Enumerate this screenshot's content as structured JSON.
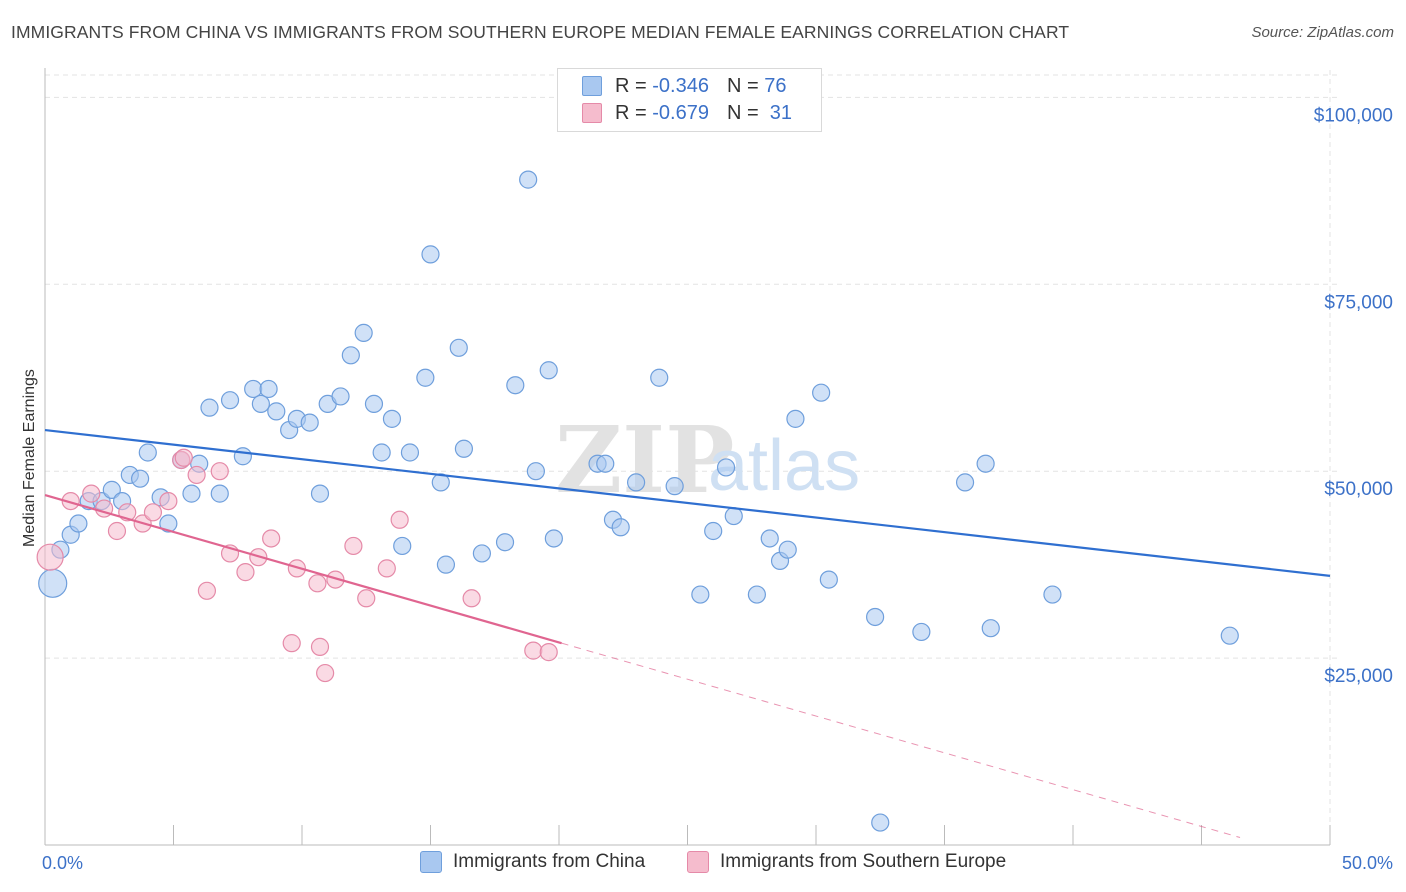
{
  "header": {
    "title": "IMMIGRANTS FROM CHINA VS IMMIGRANTS FROM SOUTHERN EUROPE MEDIAN FEMALE EARNINGS CORRELATION CHART",
    "source": "Source: ZipAtlas.com"
  },
  "watermark": {
    "zip": "ZIP",
    "atlas": "atlas"
  },
  "legend": {
    "rows": [
      {
        "r_label": "R =",
        "r_value": "-0.346",
        "n_label": "N =",
        "n_value": "76"
      },
      {
        "r_label": "R =",
        "r_value": "-0.679",
        "n_label": "N =",
        "n_value": "31"
      }
    ]
  },
  "colors": {
    "china_fill": "#a9c8f0",
    "china_stroke": "#6f9fdc",
    "china_line": "#2f6fd0",
    "se_fill": "#f5bccd",
    "se_stroke": "#e58aa8",
    "se_line": "#e06590",
    "tick_label": "#3c71c8",
    "grid": "#e3e3e3"
  },
  "chart_data": {
    "type": "scatter",
    "title": "IMMIGRANTS FROM CHINA VS IMMIGRANTS FROM SOUTHERN EUROPE MEDIAN FEMALE EARNINGS CORRELATION CHART",
    "xlabel": "",
    "ylabel": "Median Female Earnings",
    "xlim": [
      0,
      50
    ],
    "ylim": [
      0,
      105000
    ],
    "x_tick_labels": [
      "0.0%",
      "50.0%"
    ],
    "y_ticks": [
      25000,
      50000,
      75000,
      100000
    ],
    "y_tick_labels": [
      "$25,000",
      "$50,000",
      "$75,000",
      "$100,000"
    ],
    "grid": true,
    "legend_position": "bottom",
    "series": [
      {
        "name": "Immigrants from China",
        "points": [
          [
            0.3,
            35000
          ],
          [
            0.6,
            39500
          ],
          [
            1.0,
            41500
          ],
          [
            1.3,
            43000
          ],
          [
            1.7,
            46000
          ],
          [
            2.2,
            46000
          ],
          [
            2.6,
            47500
          ],
          [
            3.0,
            46000
          ],
          [
            3.3,
            49500
          ],
          [
            3.7,
            49000
          ],
          [
            4.0,
            52500
          ],
          [
            4.5,
            46500
          ],
          [
            4.8,
            43000
          ],
          [
            5.3,
            51500
          ],
          [
            5.7,
            47000
          ],
          [
            6.0,
            51000
          ],
          [
            6.4,
            58500
          ],
          [
            6.8,
            47000
          ],
          [
            7.2,
            59500
          ],
          [
            7.7,
            52000
          ],
          [
            8.1,
            61000
          ],
          [
            8.4,
            59000
          ],
          [
            8.7,
            61000
          ],
          [
            9.0,
            58000
          ],
          [
            9.5,
            55500
          ],
          [
            9.8,
            57000
          ],
          [
            10.3,
            56500
          ],
          [
            10.7,
            47000
          ],
          [
            11.0,
            59000
          ],
          [
            11.5,
            60000
          ],
          [
            11.9,
            65500
          ],
          [
            12.4,
            68500
          ],
          [
            12.8,
            59000
          ],
          [
            13.1,
            52500
          ],
          [
            13.5,
            57000
          ],
          [
            13.9,
            40000
          ],
          [
            14.2,
            52500
          ],
          [
            14.8,
            62500
          ],
          [
            15.0,
            79000
          ],
          [
            15.4,
            48500
          ],
          [
            15.6,
            37500
          ],
          [
            16.1,
            66500
          ],
          [
            16.3,
            53000
          ],
          [
            17.0,
            39000
          ],
          [
            17.9,
            40500
          ],
          [
            18.3,
            61500
          ],
          [
            18.8,
            89000
          ],
          [
            19.1,
            50000
          ],
          [
            19.6,
            63500
          ],
          [
            19.8,
            41000
          ],
          [
            21.5,
            51000
          ],
          [
            21.8,
            51000
          ],
          [
            22.1,
            43500
          ],
          [
            22.4,
            42500
          ],
          [
            23.0,
            48500
          ],
          [
            23.9,
            62500
          ],
          [
            24.5,
            48000
          ],
          [
            25.5,
            33500
          ],
          [
            26.0,
            42000
          ],
          [
            26.5,
            50500
          ],
          [
            26.8,
            44000
          ],
          [
            27.7,
            33500
          ],
          [
            28.2,
            41000
          ],
          [
            28.6,
            38000
          ],
          [
            28.9,
            39500
          ],
          [
            29.2,
            57000
          ],
          [
            30.2,
            60500
          ],
          [
            30.5,
            35500
          ],
          [
            32.3,
            30500
          ],
          [
            32.5,
            3000
          ],
          [
            34.1,
            28500
          ],
          [
            35.8,
            48500
          ],
          [
            36.6,
            51000
          ],
          [
            36.8,
            29000
          ],
          [
            39.2,
            33500
          ],
          [
            46.1,
            28000
          ]
        ]
      },
      {
        "name": "Immigrants from Southern Europe",
        "points": [
          [
            0.2,
            38500
          ],
          [
            1.0,
            46000
          ],
          [
            1.8,
            47000
          ],
          [
            2.3,
            45000
          ],
          [
            2.8,
            42000
          ],
          [
            3.2,
            44500
          ],
          [
            3.8,
            43000
          ],
          [
            4.2,
            44500
          ],
          [
            4.8,
            46000
          ],
          [
            5.3,
            51500
          ],
          [
            5.9,
            49500
          ],
          [
            6.3,
            34000
          ],
          [
            6.8,
            50000
          ],
          [
            7.2,
            39000
          ],
          [
            7.8,
            36500
          ],
          [
            8.3,
            38500
          ],
          [
            8.8,
            41000
          ],
          [
            9.6,
            27000
          ],
          [
            9.8,
            37000
          ],
          [
            10.6,
            35000
          ],
          [
            10.7,
            26500
          ],
          [
            10.9,
            23000
          ],
          [
            11.3,
            35500
          ],
          [
            12.0,
            40000
          ],
          [
            12.5,
            33000
          ],
          [
            13.3,
            37000
          ],
          [
            13.8,
            43500
          ],
          [
            16.6,
            33000
          ],
          [
            19.0,
            26000
          ],
          [
            19.6,
            25800
          ],
          [
            5.4,
            51800
          ]
        ]
      }
    ],
    "trend_lines": [
      {
        "series": "Immigrants from China",
        "x": [
          0,
          50
        ],
        "y": [
          55500,
          36000
        ],
        "style": "solid"
      },
      {
        "series": "Immigrants from Southern Europe",
        "x": [
          0,
          20.1
        ],
        "y": [
          46800,
          27000
        ],
        "style": "solid"
      },
      {
        "series": "Immigrants from Southern Europe",
        "x": [
          20.1,
          46.5
        ],
        "y": [
          27000,
          1000
        ],
        "style": "dashed"
      }
    ]
  },
  "bottom_legend": {
    "items": [
      "Immigrants from China",
      "Immigrants from Southern Europe"
    ]
  }
}
